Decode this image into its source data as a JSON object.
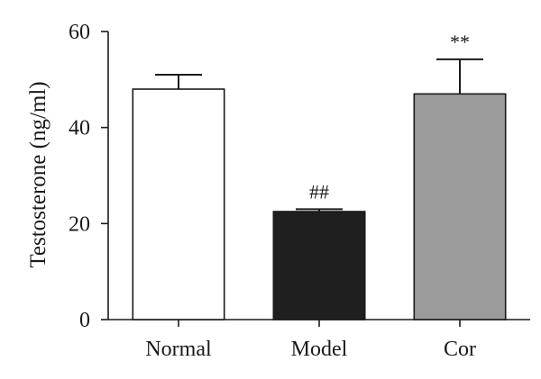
{
  "chart_data": {
    "type": "bar",
    "categories": [
      "Normal",
      "Model",
      "Cor"
    ],
    "values": [
      48,
      22.5,
      47
    ],
    "errors": [
      3,
      0.5,
      7.2
    ],
    "annotations": [
      "",
      "##",
      "**"
    ],
    "colors": [
      "#ffffff",
      "#1f1f1f",
      "#9b9b9b"
    ],
    "ylabel": "Testosterone (ng/ml)",
    "xlabel": "",
    "title": "",
    "ylim": [
      0,
      60
    ],
    "yticks": [
      0,
      20,
      40,
      60
    ],
    "grid": false,
    "legend": "none"
  }
}
